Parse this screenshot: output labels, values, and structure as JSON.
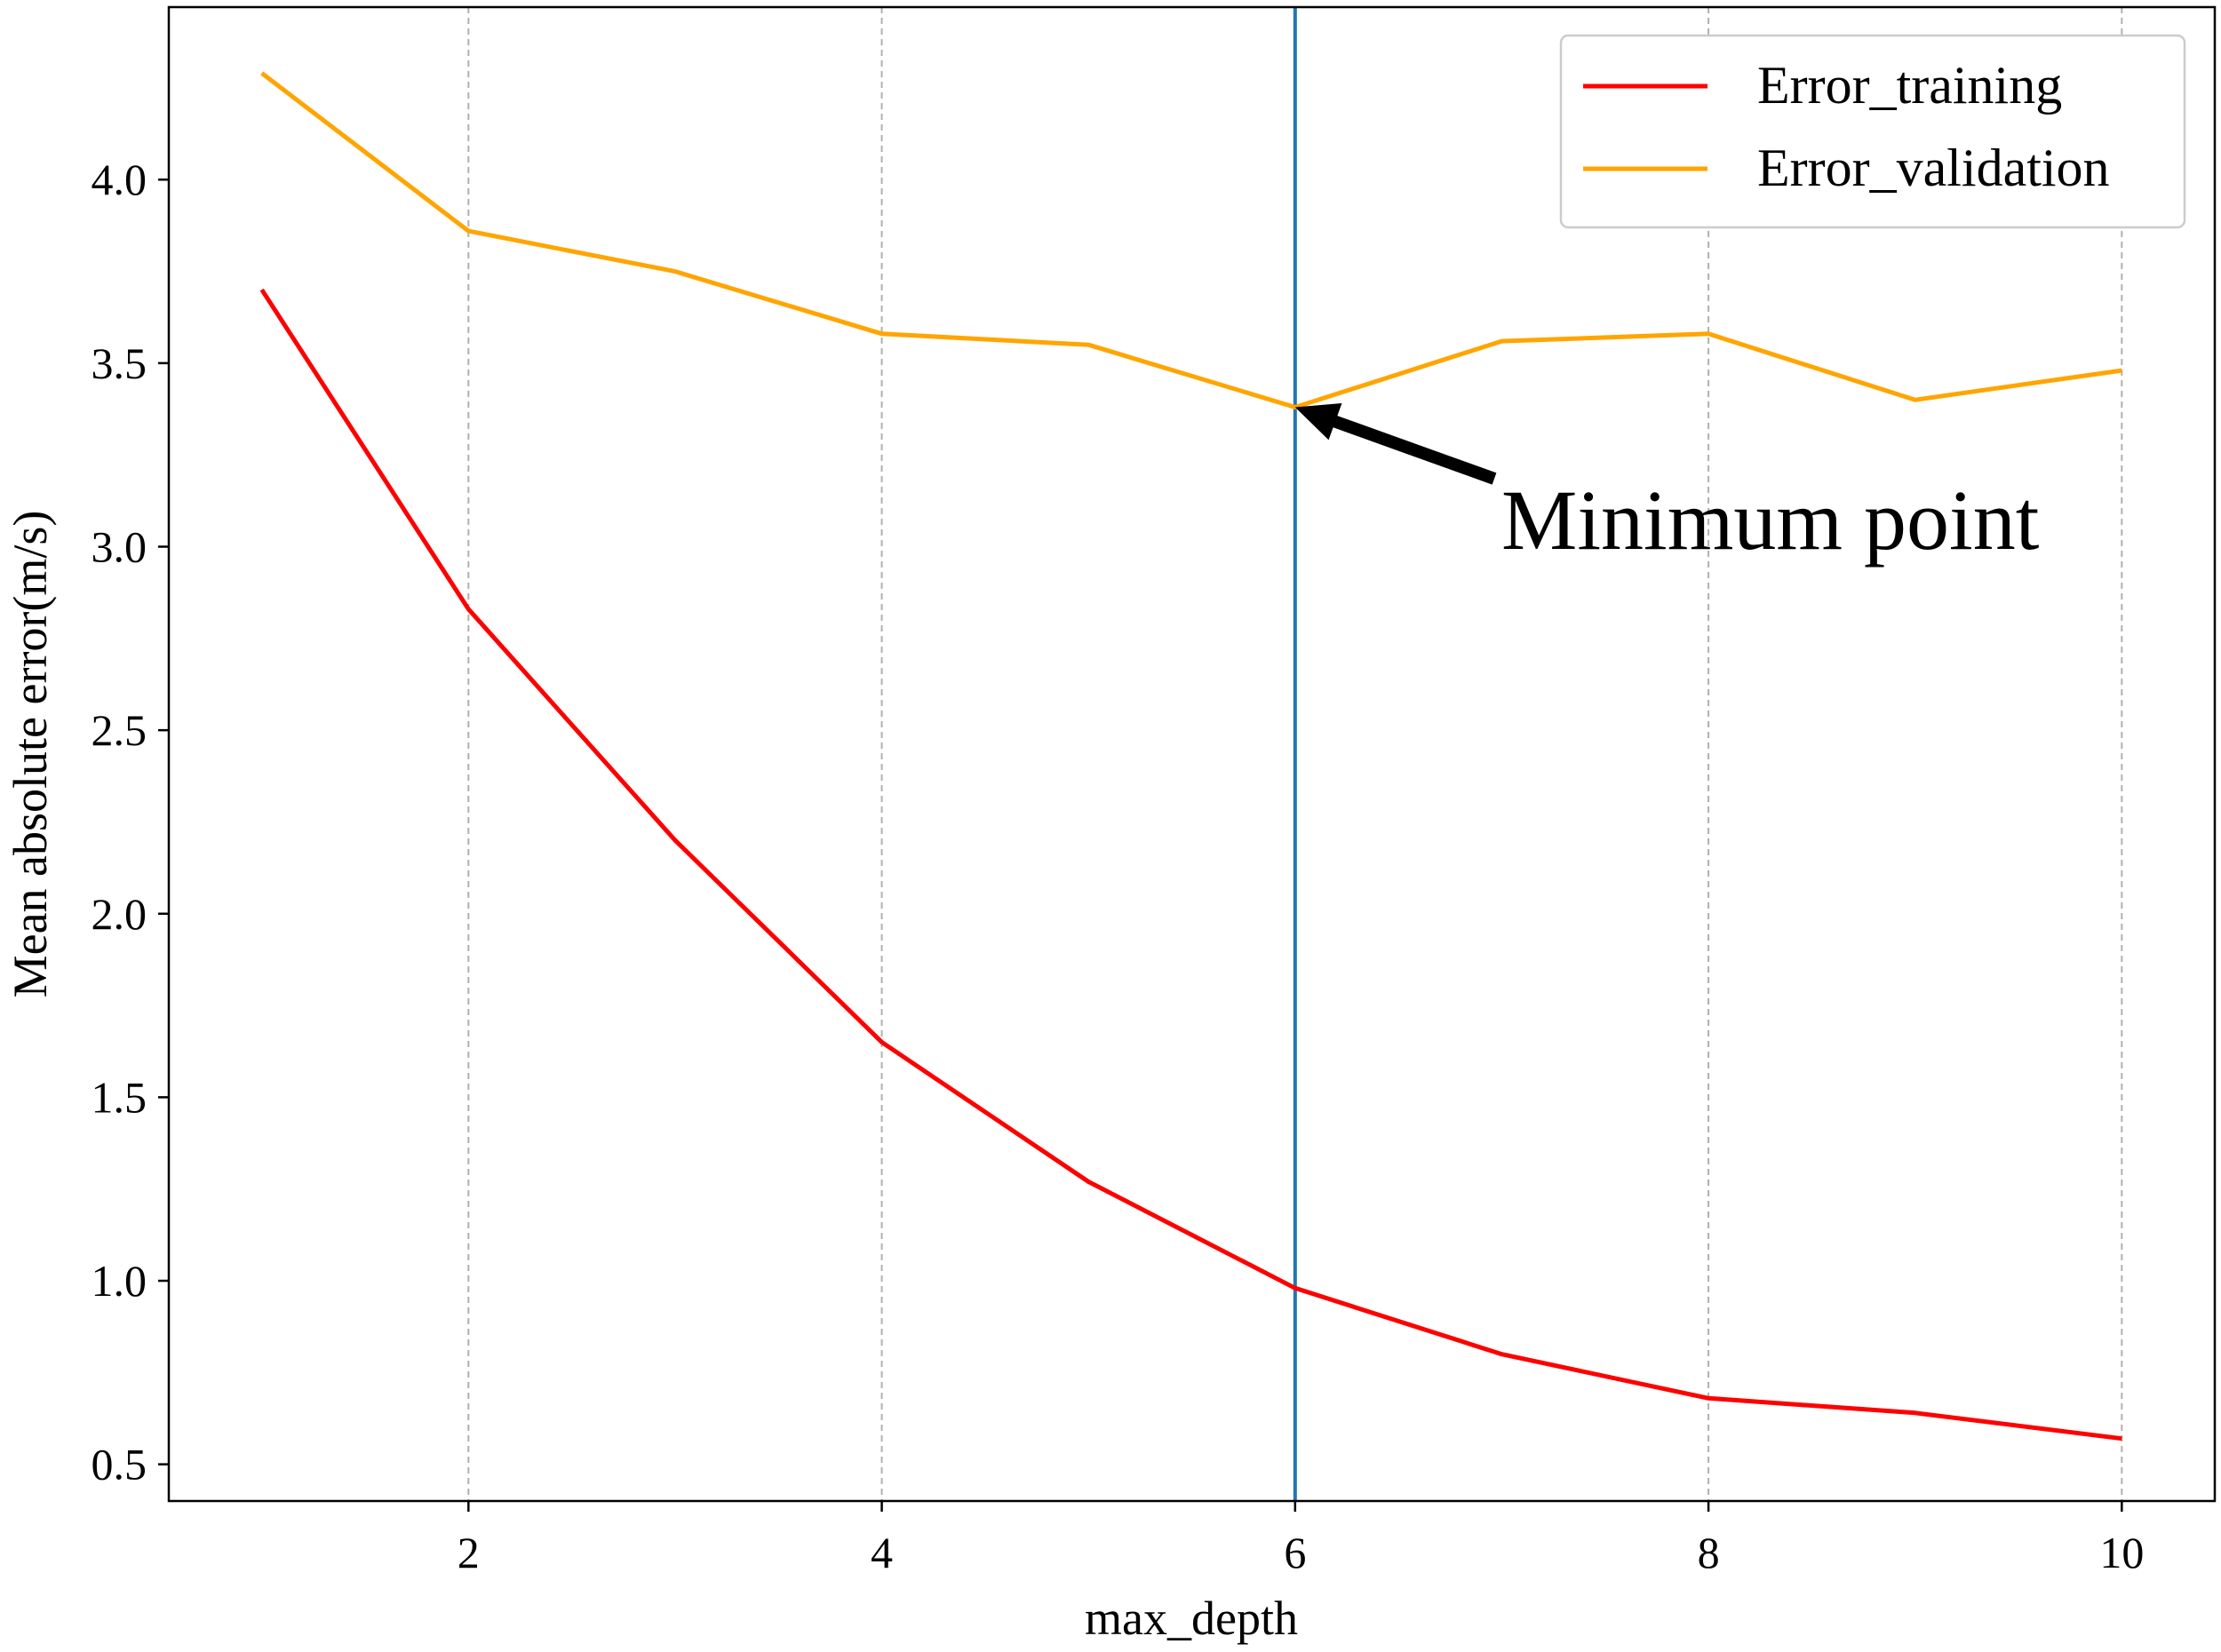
{
  "chart_data": {
    "type": "line",
    "title": "",
    "xlabel": "max_depth",
    "ylabel": "Mean absolute error(m/s)",
    "xlim": [
      0.55,
      10.45
    ],
    "ylim": [
      0.4,
      4.47
    ],
    "xticks": [
      2,
      4,
      6,
      8,
      10
    ],
    "yticks": [
      0.5,
      1.0,
      1.5,
      2.0,
      2.5,
      3.0,
      3.5,
      4.0
    ],
    "xtick_labels": [
      "2",
      "4",
      "6",
      "8",
      "10"
    ],
    "ytick_labels": [
      "0.5",
      "1.0",
      "1.5",
      "2.0",
      "2.5",
      "3.0",
      "3.5",
      "4.0"
    ],
    "grid": "vertical dashed lines at x ticks",
    "legend_position": "top-right",
    "x": [
      1,
      2,
      3,
      4,
      5,
      6,
      7,
      8,
      9,
      10
    ],
    "series": [
      {
        "name": "Error_training",
        "color": "#ff0000",
        "values": [
          3.7,
          2.83,
          2.2,
          1.65,
          1.27,
          0.98,
          0.8,
          0.68,
          0.64,
          0.57
        ]
      },
      {
        "name": "Error_validation",
        "color": "#ffa500",
        "values": [
          4.29,
          3.86,
          3.75,
          3.58,
          3.55,
          3.38,
          3.56,
          3.58,
          3.4,
          3.48
        ]
      }
    ],
    "vline": {
      "x": 6,
      "color": "#1f77b4"
    },
    "annotation": {
      "text": "Minimum point",
      "target": [
        6,
        3.38
      ],
      "arrow": "black"
    }
  }
}
